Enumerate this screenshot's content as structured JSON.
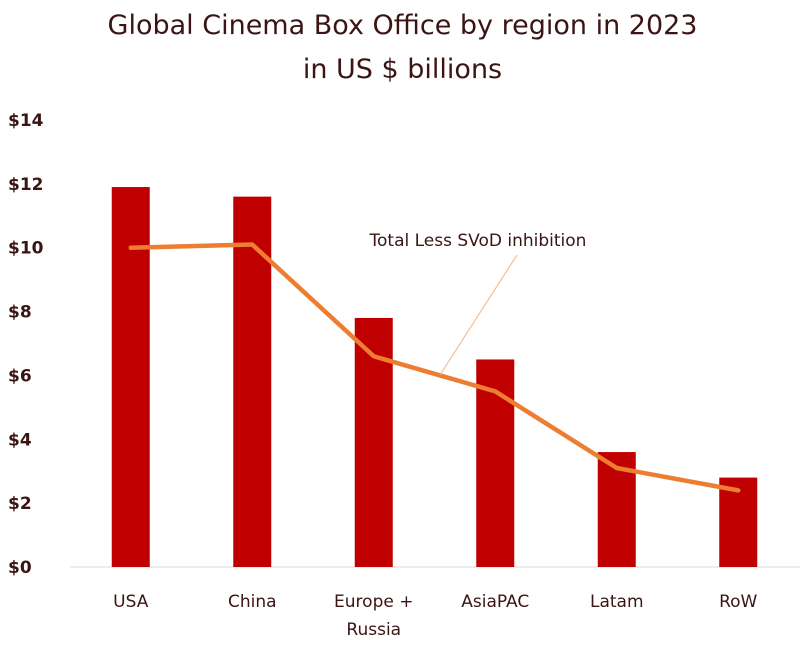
{
  "chart_data": {
    "type": "bar",
    "title": "Global Cinema Box Office by region in 2023",
    "subtitle": "in US $ billions",
    "categories": [
      "USA",
      "China",
      "Europe + Russia",
      "AsiaPAC",
      "Latam",
      "RoW"
    ],
    "category_lines": [
      [
        "USA"
      ],
      [
        "China"
      ],
      [
        "Europe +",
        "Russia"
      ],
      [
        "AsiaPAC"
      ],
      [
        "Latam"
      ],
      [
        "RoW"
      ]
    ],
    "series": [
      {
        "type": "bar",
        "values": [
          11.9,
          11.6,
          7.8,
          6.5,
          3.6,
          2.8
        ],
        "color": "#c00000"
      },
      {
        "type": "line",
        "name": "Total Less SVoD inhibition",
        "values": [
          10.0,
          10.1,
          6.6,
          5.5,
          3.1,
          2.4
        ],
        "color": "#ed7d31"
      }
    ],
    "ylim": [
      0,
      14
    ],
    "yticks": [
      0,
      2,
      4,
      6,
      8,
      10,
      12,
      14
    ],
    "ytick_labels": [
      "$0",
      "$2",
      "$4",
      "$6",
      "$8",
      "$10",
      "$12",
      "$14"
    ],
    "grid": false,
    "legend": "none",
    "annotation": "Total Less SVoD inhibition"
  }
}
